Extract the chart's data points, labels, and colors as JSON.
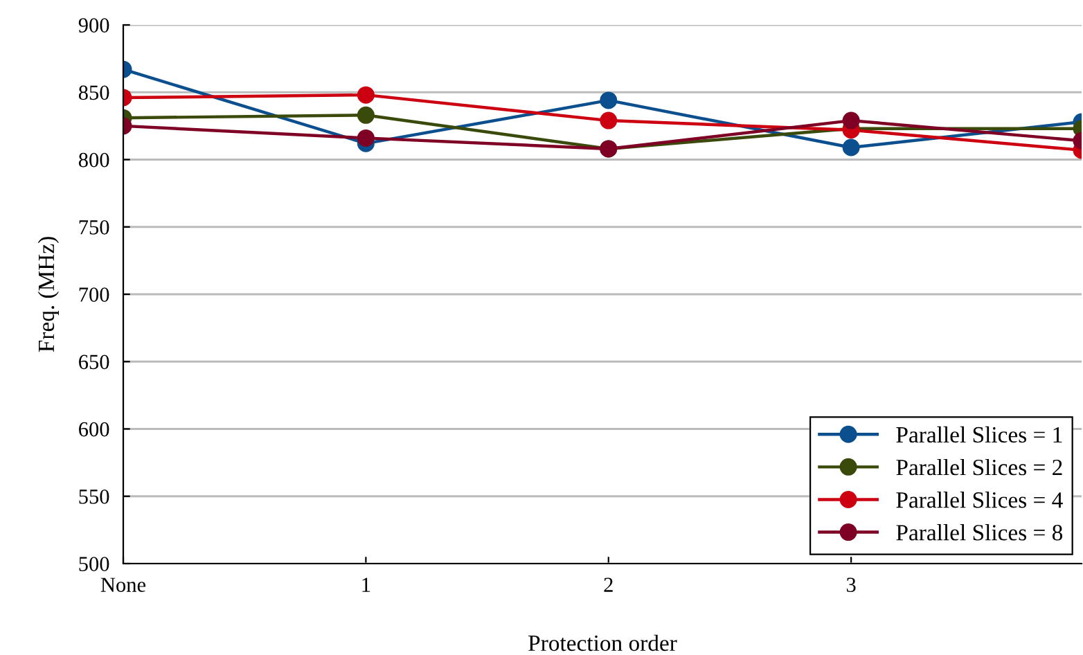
{
  "chart_data": {
    "type": "line",
    "xlabel": "Protection order",
    "ylabel": "Freq. (MHz)",
    "x": [
      0,
      1,
      2,
      3,
      3.95
    ],
    "xlim": [
      0,
      3.95
    ],
    "xticks": [
      {
        "value": 0,
        "label": "None"
      },
      1,
      2,
      3
    ],
    "ylim": [
      500,
      900
    ],
    "yticks": [
      500,
      550,
      600,
      650,
      700,
      750,
      800,
      850,
      900
    ],
    "grid": "y",
    "legend": "bottom right",
    "marker": "circle",
    "line_style": "solid",
    "series": [
      {
        "name": "Parallel Slices = 1",
        "color": "#0b4f8f",
        "values": [
          867,
          812,
          844,
          809,
          828
        ]
      },
      {
        "name": "Parallel Slices = 2",
        "color": "#3a4a0a",
        "values": [
          831,
          833,
          808,
          823,
          823
        ]
      },
      {
        "name": "Parallel Slices = 4",
        "color": "#cc0011",
        "values": [
          846,
          848,
          829,
          822,
          807
        ]
      },
      {
        "name": "Parallel Slices = 8",
        "color": "#7f0025",
        "values": [
          825,
          816,
          808,
          829,
          814
        ]
      }
    ]
  }
}
